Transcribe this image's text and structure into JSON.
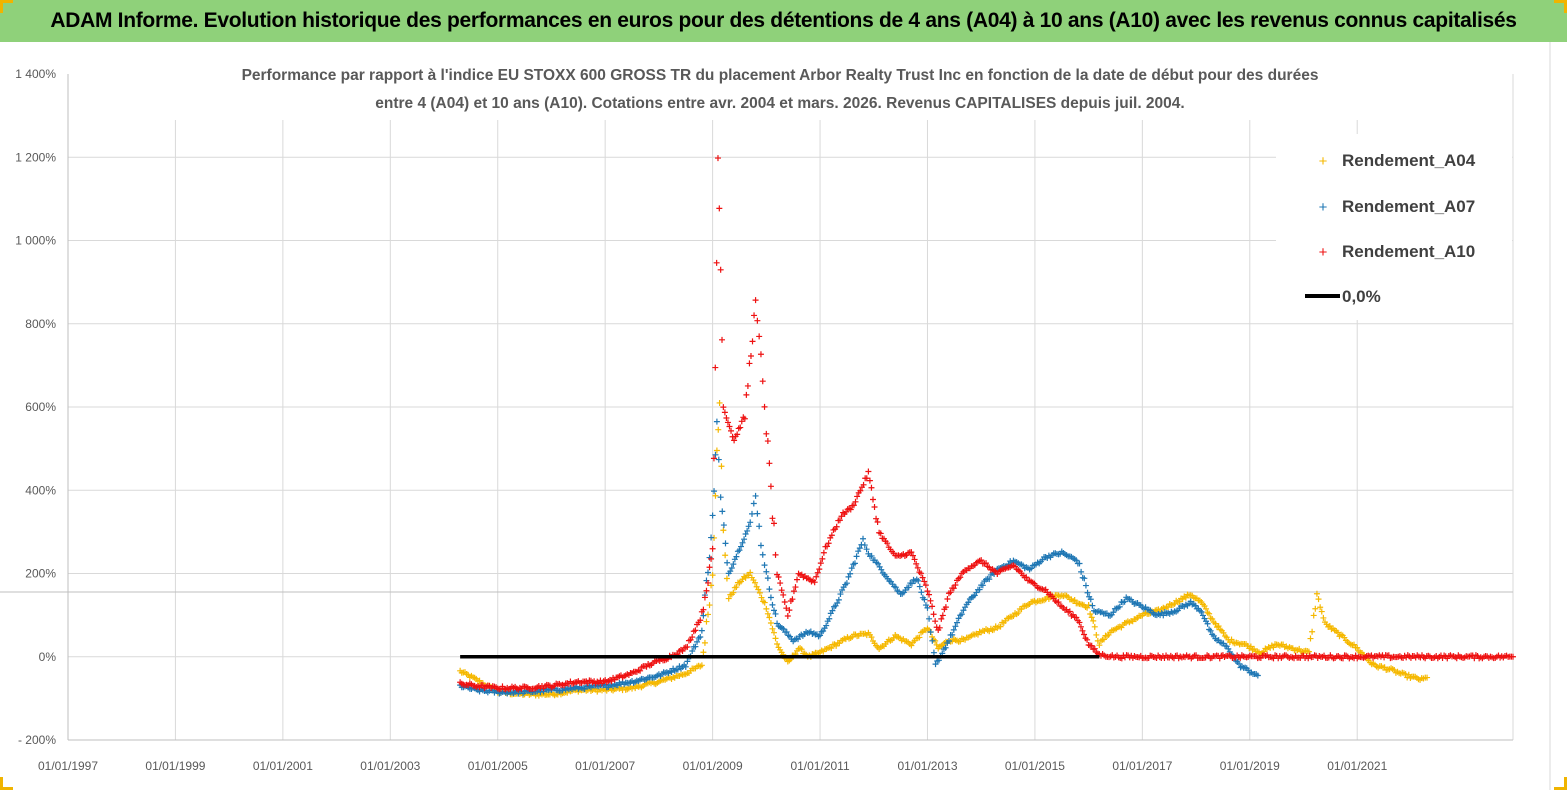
{
  "header": {
    "title": "ADAM Informe. Evolution historique des performances en euros pour des détentions de 4 ans (A04) à 10 ans (A10) avec les revenus connus capitalisés"
  },
  "colors": {
    "banner": "#8fd17a",
    "A04": "#f5b800",
    "A07": "#1f77b4",
    "A10": "#ee1111",
    "zero_line": "#000000",
    "grid": "#d9d9d9"
  },
  "chart_data": {
    "type": "scatter",
    "title_lines": [
      "Performance par rapport à l'indice EU STOXX 600 GROSS TR  du placement Arbor Realty Trust Inc en fonction de la date de début pour des durées",
      "entre 4 (A04) et 10 ans (A10). Cotations entre avr. 2004 et mars. 2026. Revenus CAPITALISES depuis juil. 2004."
    ],
    "xlabel": "",
    "ylabel": "",
    "x_unit": "year",
    "xlim": [
      1997,
      2023.9
    ],
    "x_ticks": [
      1997,
      1999,
      2001,
      2003,
      2005,
      2007,
      2009,
      2011,
      2013,
      2015,
      2017,
      2019,
      2021
    ],
    "x_tick_labels": [
      "01/01/1997",
      "01/01/1999",
      "01/01/2001",
      "01/01/2003",
      "01/01/2005",
      "01/01/2007",
      "01/01/2009",
      "01/01/2011",
      "01/01/2013",
      "01/01/2015",
      "01/01/2017",
      "01/01/2019",
      "01/01/2021"
    ],
    "ylim": [
      -200,
      1400
    ],
    "y_ticks": [
      -200,
      0,
      200,
      400,
      600,
      800,
      1000,
      1200,
      1400
    ],
    "y_tick_labels": [
      "- 200%",
      "0%",
      "200%",
      "400%",
      "600%",
      "800%",
      "1 000%",
      "1 200%",
      "1 400%"
    ],
    "grid": true,
    "legend_position": "top-right",
    "legend": [
      "Rendement_A04",
      "Rendement_A07",
      "Rendement_A10",
      "0,0%"
    ],
    "series": [
      {
        "name": "Rendement_A04",
        "marker": "+",
        "points": [
          [
            2004.3,
            -35
          ],
          [
            2004.6,
            -55
          ],
          [
            2005.0,
            -85
          ],
          [
            2005.5,
            -90
          ],
          [
            2006.0,
            -90
          ],
          [
            2006.5,
            -80
          ],
          [
            2007.0,
            -80
          ],
          [
            2007.5,
            -75
          ],
          [
            2008.0,
            -60
          ],
          [
            2008.5,
            -40
          ],
          [
            2008.8,
            -20
          ],
          [
            2009.0,
            200
          ],
          [
            2009.08,
            500
          ],
          [
            2009.13,
            600
          ],
          [
            2009.2,
            300
          ],
          [
            2009.3,
            140
          ],
          [
            2009.5,
            180
          ],
          [
            2009.7,
            200
          ],
          [
            2009.85,
            160
          ],
          [
            2010.0,
            120
          ],
          [
            2010.2,
            30
          ],
          [
            2010.4,
            -15
          ],
          [
            2010.6,
            20
          ],
          [
            2010.8,
            0
          ],
          [
            2011.0,
            10
          ],
          [
            2011.3,
            30
          ],
          [
            2011.6,
            50
          ],
          [
            2011.9,
            55
          ],
          [
            2012.1,
            20
          ],
          [
            2012.4,
            50
          ],
          [
            2012.7,
            30
          ],
          [
            2013.0,
            70
          ],
          [
            2013.2,
            20
          ],
          [
            2013.4,
            40
          ],
          [
            2013.7,
            40
          ],
          [
            2014.0,
            60
          ],
          [
            2014.3,
            70
          ],
          [
            2014.6,
            100
          ],
          [
            2014.9,
            130
          ],
          [
            2015.2,
            140
          ],
          [
            2015.5,
            150
          ],
          [
            2015.8,
            130
          ],
          [
            2016.0,
            120
          ],
          [
            2016.2,
            30
          ],
          [
            2016.4,
            60
          ],
          [
            2016.7,
            80
          ],
          [
            2017.0,
            100
          ],
          [
            2017.3,
            110
          ],
          [
            2017.6,
            130
          ],
          [
            2017.9,
            150
          ],
          [
            2018.1,
            130
          ],
          [
            2018.3,
            90
          ],
          [
            2018.6,
            40
          ],
          [
            2018.9,
            30
          ],
          [
            2019.2,
            10
          ],
          [
            2019.5,
            30
          ],
          [
            2019.8,
            20
          ],
          [
            2020.1,
            10
          ],
          [
            2020.25,
            150
          ],
          [
            2020.4,
            80
          ],
          [
            2020.7,
            50
          ],
          [
            2021.0,
            20
          ],
          [
            2021.3,
            -20
          ],
          [
            2021.6,
            -30
          ],
          [
            2021.9,
            -45
          ],
          [
            2022.2,
            -55
          ],
          [
            2022.3,
            -50
          ]
        ]
      },
      {
        "name": "Rendement_A07",
        "marker": "+",
        "points": [
          [
            2004.3,
            -70
          ],
          [
            2004.6,
            -80
          ],
          [
            2005.0,
            -85
          ],
          [
            2005.5,
            -85
          ],
          [
            2006.0,
            -80
          ],
          [
            2006.5,
            -75
          ],
          [
            2007.0,
            -70
          ],
          [
            2007.5,
            -60
          ],
          [
            2008.0,
            -45
          ],
          [
            2008.5,
            -20
          ],
          [
            2008.8,
            60
          ],
          [
            2009.0,
            330
          ],
          [
            2009.08,
            560
          ],
          [
            2009.15,
            380
          ],
          [
            2009.3,
            200
          ],
          [
            2009.5,
            260
          ],
          [
            2009.7,
            320
          ],
          [
            2009.8,
            390
          ],
          [
            2009.9,
            270
          ],
          [
            2010.0,
            200
          ],
          [
            2010.2,
            80
          ],
          [
            2010.5,
            40
          ],
          [
            2010.8,
            60
          ],
          [
            2011.0,
            50
          ],
          [
            2011.2,
            100
          ],
          [
            2011.5,
            180
          ],
          [
            2011.8,
            280
          ],
          [
            2011.9,
            250
          ],
          [
            2012.2,
            200
          ],
          [
            2012.5,
            150
          ],
          [
            2012.8,
            190
          ],
          [
            2013.0,
            110
          ],
          [
            2013.15,
            -20
          ],
          [
            2013.4,
            40
          ],
          [
            2013.7,
            120
          ],
          [
            2014.0,
            170
          ],
          [
            2014.3,
            210
          ],
          [
            2014.6,
            230
          ],
          [
            2014.9,
            210
          ],
          [
            2015.2,
            240
          ],
          [
            2015.5,
            250
          ],
          [
            2015.8,
            230
          ],
          [
            2016.1,
            110
          ],
          [
            2016.4,
            100
          ],
          [
            2016.7,
            140
          ],
          [
            2017.0,
            120
          ],
          [
            2017.3,
            100
          ],
          [
            2017.6,
            110
          ],
          [
            2017.9,
            130
          ],
          [
            2018.1,
            110
          ],
          [
            2018.3,
            50
          ],
          [
            2018.6,
            20
          ],
          [
            2018.8,
            -20
          ],
          [
            2019.0,
            -35
          ],
          [
            2019.15,
            -45
          ]
        ]
      },
      {
        "name": "Rendement_A10",
        "marker": "+",
        "points": [
          [
            2004.3,
            -65
          ],
          [
            2004.6,
            -70
          ],
          [
            2005.0,
            -75
          ],
          [
            2005.5,
            -75
          ],
          [
            2006.0,
            -70
          ],
          [
            2006.5,
            -60
          ],
          [
            2007.0,
            -60
          ],
          [
            2007.5,
            -40
          ],
          [
            2007.8,
            -20
          ],
          [
            2008.2,
            0
          ],
          [
            2008.5,
            20
          ],
          [
            2008.8,
            100
          ],
          [
            2009.0,
            250
          ],
          [
            2009.05,
            700
          ],
          [
            2009.1,
            1200
          ],
          [
            2009.15,
            950
          ],
          [
            2009.2,
            600
          ],
          [
            2009.4,
            520
          ],
          [
            2009.6,
            580
          ],
          [
            2009.8,
            850
          ],
          [
            2009.9,
            720
          ],
          [
            2010.0,
            550
          ],
          [
            2010.2,
            200
          ],
          [
            2010.4,
            100
          ],
          [
            2010.6,
            200
          ],
          [
            2010.9,
            180
          ],
          [
            2011.1,
            260
          ],
          [
            2011.4,
            340
          ],
          [
            2011.6,
            360
          ],
          [
            2011.9,
            440
          ],
          [
            2012.1,
            300
          ],
          [
            2012.4,
            240
          ],
          [
            2012.7,
            250
          ],
          [
            2013.0,
            160
          ],
          [
            2013.2,
            60
          ],
          [
            2013.4,
            150
          ],
          [
            2013.7,
            210
          ],
          [
            2014.0,
            230
          ],
          [
            2014.3,
            200
          ],
          [
            2014.6,
            220
          ],
          [
            2014.9,
            180
          ],
          [
            2015.2,
            160
          ],
          [
            2015.5,
            120
          ],
          [
            2015.8,
            90
          ],
          [
            2016.0,
            30
          ],
          [
            2016.2,
            5
          ],
          [
            2016.5,
            0
          ],
          [
            2017.0,
            0
          ],
          [
            2018.0,
            0
          ],
          [
            2019.0,
            0
          ],
          [
            2020.0,
            0
          ],
          [
            2021.0,
            0
          ],
          [
            2022.0,
            0
          ],
          [
            2023.0,
            0
          ],
          [
            2023.9,
            0
          ]
        ]
      },
      {
        "name": "0,0%",
        "type": "line",
        "points": [
          [
            2004.3,
            0
          ],
          [
            2016.2,
            0
          ]
        ]
      }
    ]
  }
}
